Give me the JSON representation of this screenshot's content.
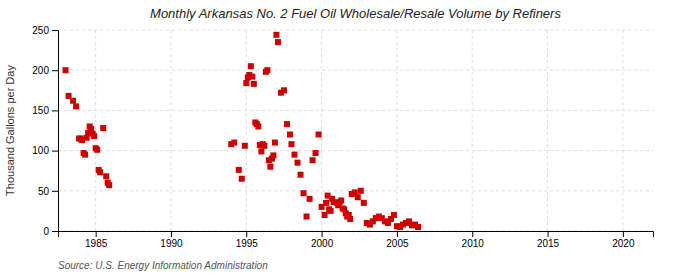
{
  "chart_data": {
    "type": "scatter",
    "title": "Monthly Arkansas No. 2 Fuel Oil Wholesale/Resale Volume by Refiners",
    "ylabel": "Thousand Gallons per Day",
    "annotations": [
      "Source: U.S. Energy Information Administration"
    ],
    "color": "#cc0000",
    "marker": "square",
    "grid": true,
    "xlim": [
      1982.5,
      2022
    ],
    "ylim": [
      0,
      250
    ],
    "xticks": [
      1985,
      1990,
      1995,
      2000,
      2005,
      2010,
      2015,
      2020
    ],
    "yticks": [
      0,
      50,
      100,
      150,
      200,
      250
    ],
    "x": [
      1983.0,
      1983.2,
      1983.5,
      1983.7,
      1983.9,
      1984.0,
      1984.1,
      1984.2,
      1984.3,
      1984.4,
      1984.5,
      1984.6,
      1984.7,
      1984.8,
      1984.9,
      1985.0,
      1985.1,
      1985.2,
      1985.3,
      1985.5,
      1985.7,
      1985.8,
      1985.9,
      1994.0,
      1994.2,
      1994.5,
      1994.7,
      1994.9,
      1995.0,
      1995.1,
      1995.2,
      1995.3,
      1995.4,
      1995.5,
      1995.6,
      1995.7,
      1995.8,
      1995.9,
      1996.0,
      1996.1,
      1996.2,
      1996.3,
      1996.4,
      1996.5,
      1996.6,
      1996.7,
      1996.8,
      1996.9,
      1997.0,
      1997.1,
      1997.3,
      1997.5,
      1997.7,
      1997.9,
      1998.0,
      1998.2,
      1998.4,
      1998.6,
      1998.8,
      1999.0,
      1999.2,
      1999.4,
      1999.6,
      1999.8,
      2000.0,
      2000.2,
      2000.3,
      2000.4,
      2000.5,
      2000.6,
      2000.7,
      2000.8,
      2001.0,
      2001.1,
      2001.2,
      2001.3,
      2001.4,
      2001.5,
      2001.6,
      2001.7,
      2001.8,
      2001.9,
      2002.0,
      2002.2,
      2002.4,
      2002.6,
      2002.8,
      2003.0,
      2003.2,
      2003.4,
      2003.6,
      2003.8,
      2004.0,
      2004.2,
      2004.4,
      2004.6,
      2004.8,
      2005.0,
      2005.2,
      2005.4,
      2005.6,
      2005.8,
      2006.0,
      2006.2,
      2006.4
    ],
    "values": [
      200,
      168,
      162,
      155,
      115,
      115,
      113,
      97,
      95,
      116,
      122,
      130,
      127,
      121,
      118,
      103,
      101,
      76,
      73,
      128,
      68,
      60,
      57,
      108,
      110,
      76,
      65,
      106,
      184,
      191,
      194,
      205,
      192,
      183,
      135,
      133,
      130,
      107,
      99,
      108,
      106,
      198,
      200,
      88,
      80,
      90,
      94,
      110,
      244,
      235,
      172,
      175,
      133,
      120,
      108,
      95,
      85,
      70,
      47,
      18,
      40,
      88,
      97,
      120,
      30,
      20,
      35,
      44,
      27,
      25,
      40,
      36,
      35,
      32,
      36,
      38,
      28,
      27,
      22,
      18,
      20,
      15,
      46,
      48,
      42,
      50,
      35,
      10,
      8,
      12,
      16,
      18,
      16,
      12,
      10,
      15,
      20,
      6,
      5,
      8,
      10,
      12,
      7,
      8,
      5
    ]
  }
}
